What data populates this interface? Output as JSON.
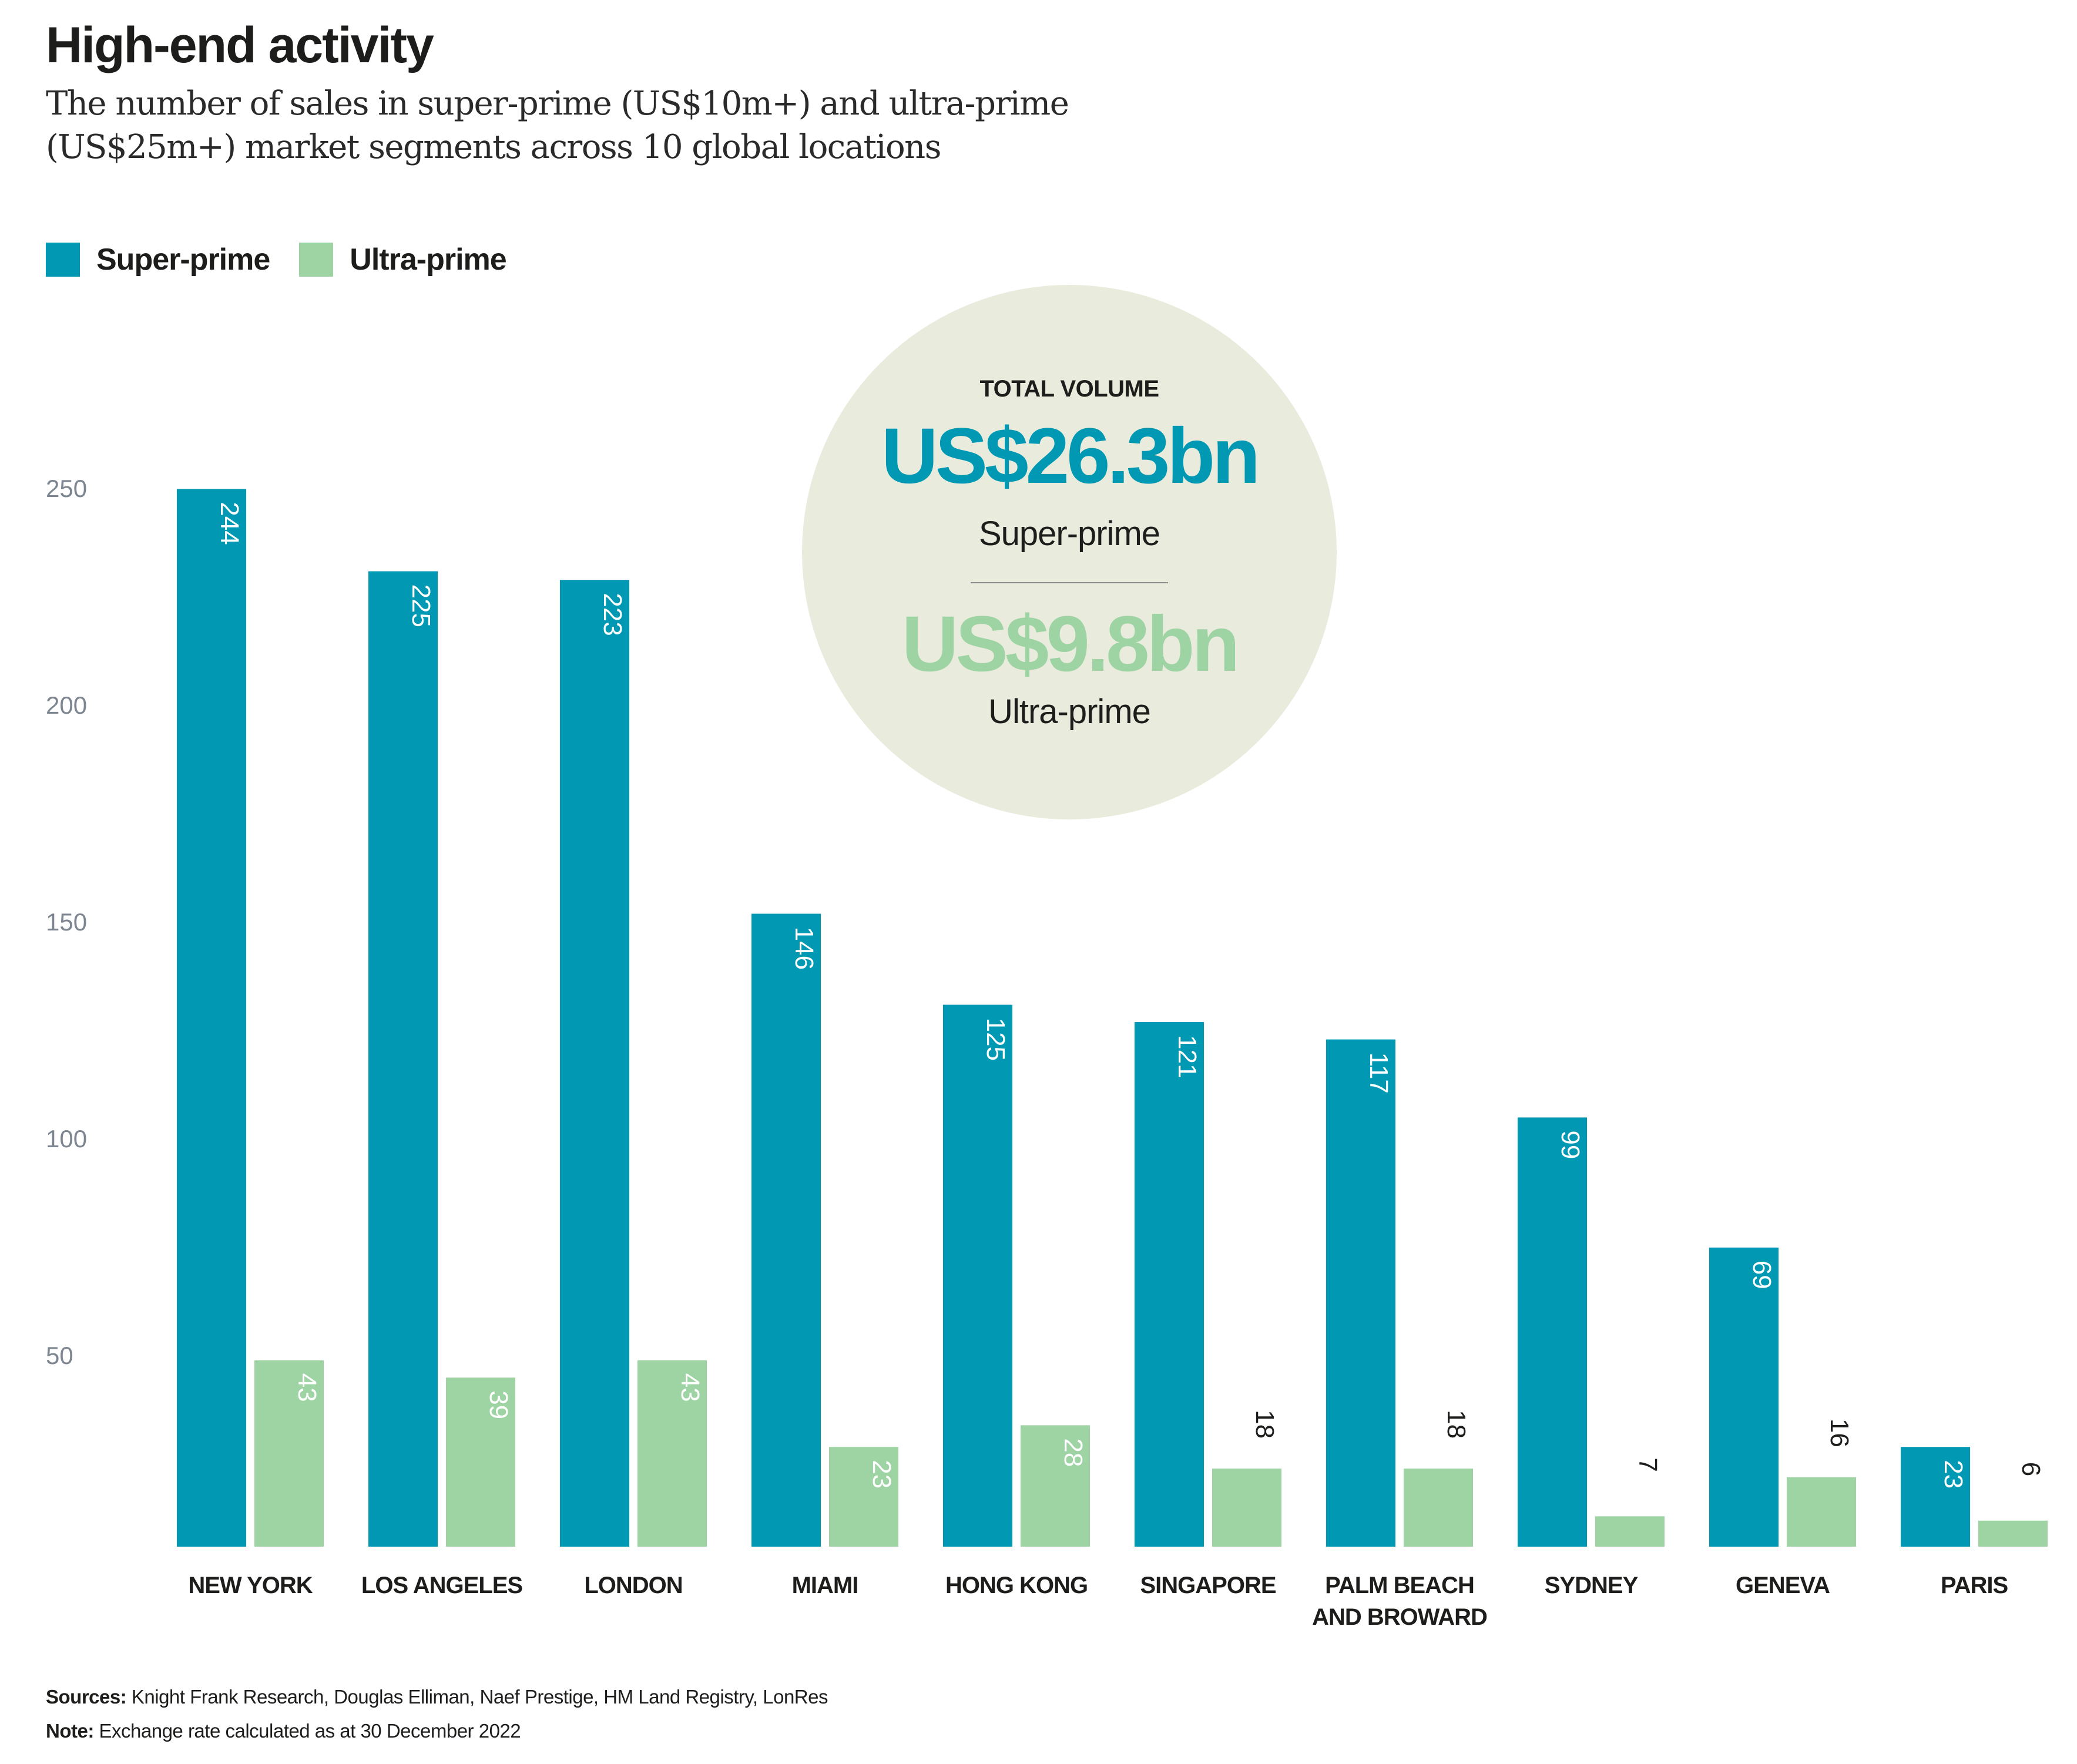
{
  "header": {
    "title": "High-end activity",
    "subtitle": "The number of sales in super-prime (US$10m+) and ultra-prime (US$25m+) market segments across 10 global locations"
  },
  "legend": [
    {
      "label": "Super-prime",
      "color": "#0098b2"
    },
    {
      "label": "Ultra-prime",
      "color": "#9ed3a3"
    }
  ],
  "callout": {
    "heading": "TOTAL VOLUME",
    "super_value": "US$26.3bn",
    "super_label": "Super-prime",
    "ultra_value": "US$9.8bn",
    "ultra_label": "Ultra-prime"
  },
  "footer": {
    "sources_label": "Sources:",
    "sources_text": " Knight Frank Research, Douglas Elliman, Naef Prestige, HM Land Registry, LonRes",
    "note_label": "Note:",
    "note_text": " Exchange rate calculated as at 30 December 2022"
  },
  "chart_data": {
    "type": "bar",
    "title": "High-end activity",
    "subtitle": "The number of sales in super-prime (US$10m+) and ultra-prime (US$25m+) market segments across 10 global locations",
    "xlabel": "",
    "ylabel": "",
    "categories": [
      "NEW YORK",
      "LOS ANGELES",
      "LONDON",
      "MIAMI",
      "HONG KONG",
      "SINGAPORE",
      "PALM BEACH AND BROWARD",
      "SYDNEY",
      "GENEVA",
      "PARIS"
    ],
    "category_lines": [
      [
        "NEW YORK"
      ],
      [
        "LOS ANGELES"
      ],
      [
        "LONDON"
      ],
      [
        "MIAMI"
      ],
      [
        "HONG KONG"
      ],
      [
        "SINGAPORE"
      ],
      [
        "PALM BEACH",
        "AND BROWARD"
      ],
      [
        "SYDNEY"
      ],
      [
        "GENEVA"
      ],
      [
        "PARIS"
      ]
    ],
    "series": [
      {
        "name": "Super-prime",
        "color": "#0098b2",
        "values": [
          244,
          225,
          223,
          146,
          125,
          121,
          117,
          99,
          69,
          23
        ]
      },
      {
        "name": "Ultra-prime",
        "color": "#9ed3a3",
        "values": [
          43,
          39,
          43,
          23,
          28,
          18,
          18,
          7,
          16,
          6
        ]
      }
    ],
    "yticks": [
      50,
      100,
      150,
      200,
      250
    ],
    "ylim": [
      0,
      250
    ],
    "grid": false,
    "legend_position": "top-left",
    "data_labels": "rotated inside bars"
  }
}
